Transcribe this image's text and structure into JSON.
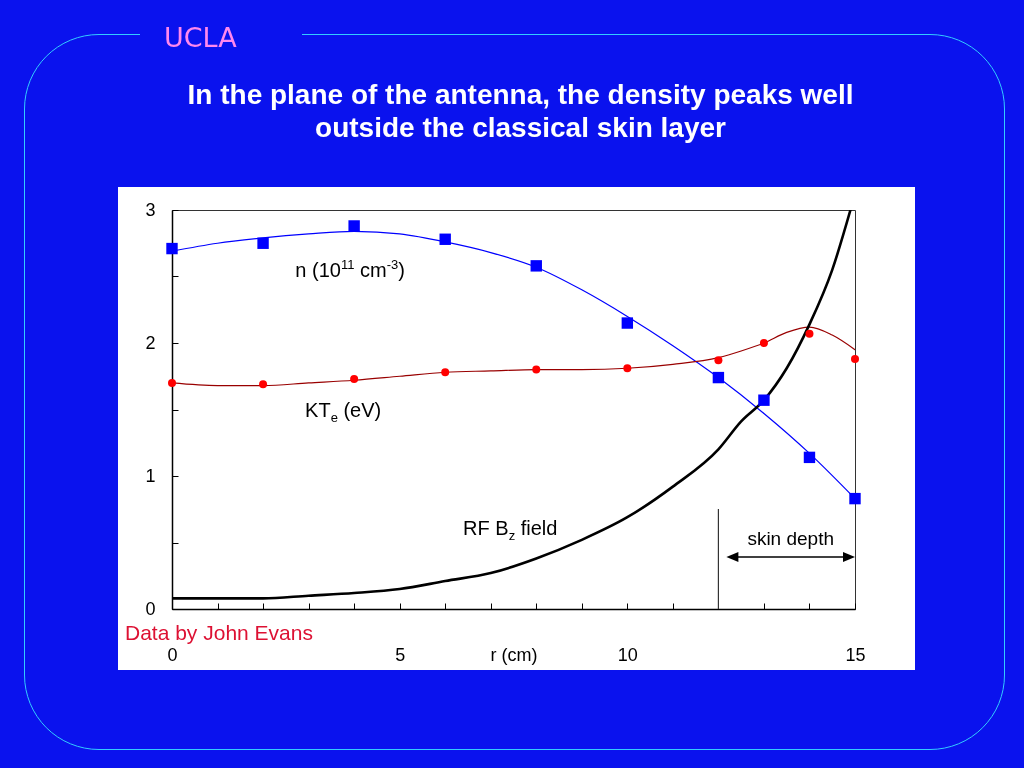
{
  "chart_data": {
    "type": "line",
    "title": "In the plane of the antenna, the density peaks well outside the classical skin layer",
    "xlabel": "r (cm)",
    "xlim": [
      0,
      15
    ],
    "xticks": [
      0,
      {
        "value": 1,
        "label": null
      },
      {
        "value": 2,
        "label": null
      },
      {
        "value": 3,
        "label": null
      },
      {
        "value": 4,
        "label": null
      },
      5,
      {
        "value": 6,
        "label": null
      },
      {
        "value": 7,
        "label": null
      },
      {
        "value": 8,
        "label": null
      },
      {
        "value": 9,
        "label": null
      },
      10,
      {
        "value": 11,
        "label": null
      },
      {
        "value": 12,
        "label": null
      },
      {
        "value": 13,
        "label": null
      },
      {
        "value": 14,
        "label": null
      },
      15
    ],
    "ylim": [
      0,
      3
    ],
    "yticks": [
      0,
      {
        "value": 0.5,
        "label": null
      },
      1,
      {
        "value": 1.5,
        "label": null
      },
      2,
      {
        "value": 2.5,
        "label": null
      },
      3
    ],
    "series": [
      {
        "name": "n (10$^{11}$ cm$^{-3}$)",
        "type": "scatter",
        "marker": "square",
        "color": "#0000ff",
        "x": [
          0,
          2,
          4,
          6,
          8,
          10,
          12,
          13,
          14,
          15
        ],
        "values": [
          2.71,
          2.75,
          2.88,
          2.78,
          2.58,
          2.15,
          1.74,
          1.57,
          1.14,
          0.83
        ]
      },
      {
        "type": "line",
        "color": "#0000ff",
        "x": [
          0,
          1,
          2,
          3,
          4,
          5,
          6,
          7,
          8,
          9,
          10,
          11,
          12,
          13,
          14,
          15
        ],
        "values": [
          2.69,
          2.75,
          2.79,
          2.82,
          2.84,
          2.82,
          2.76,
          2.68,
          2.57,
          2.4,
          2.2,
          1.98,
          1.74,
          1.47,
          1.17,
          0.83
        ]
      },
      {
        "name": "KT$_{e}$ (eV)",
        "type": "scatter",
        "marker": "circle",
        "color": "#ff0000",
        "x": [
          0,
          2,
          4,
          6,
          8,
          10,
          12,
          13,
          14,
          15
        ],
        "values": [
          1.7,
          1.69,
          1.73,
          1.78,
          1.8,
          1.81,
          1.87,
          2.0,
          2.07,
          1.88
        ]
      },
      {
        "type": "line",
        "color": "#990000",
        "x": [
          0,
          1,
          2,
          3,
          4,
          5,
          6,
          7,
          8,
          9,
          10,
          11,
          12,
          12.5,
          13,
          13.5,
          14,
          14.5,
          15
        ],
        "values": [
          1.7,
          1.68,
          1.68,
          1.7,
          1.72,
          1.75,
          1.78,
          1.79,
          1.8,
          1.8,
          1.81,
          1.84,
          1.89,
          1.94,
          2.0,
          2.08,
          2.12,
          2.06,
          1.95
        ]
      },
      {
        "name": "RF B$_{z}$ field",
        "type": "line",
        "color": "#000000",
        "x": [
          0,
          1,
          2,
          3,
          4,
          5,
          6,
          7,
          8,
          9,
          10,
          11,
          12,
          12.5,
          13,
          13.5,
          14,
          14.5,
          14.9
        ],
        "values": [
          0.08,
          0.08,
          0.08,
          0.1,
          0.12,
          0.15,
          0.21,
          0.27,
          0.38,
          0.52,
          0.69,
          0.92,
          1.2,
          1.41,
          1.57,
          1.81,
          2.14,
          2.55,
          3.0
        ]
      }
    ],
    "ref_lines": [
      {
        "axis": "x",
        "value": 12,
        "label": "skin depth",
        "color": "#333333"
      }
    ],
    "annotations": [
      "UCLA",
      "Data by John Evans"
    ]
  }
}
